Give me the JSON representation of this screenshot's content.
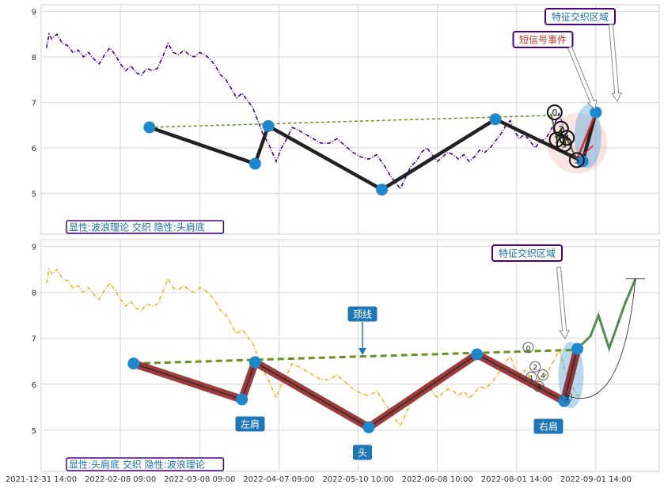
{
  "chart_data": [
    {
      "type": "line",
      "panel": "top",
      "ylim": [
        4.1,
        9.15
      ],
      "yticks": [
        5,
        6,
        7,
        8,
        9
      ],
      "grid": true,
      "price_color": "#4b0082",
      "price_series": [
        [
          1.0,
          8.2
        ],
        [
          1.5,
          8.5
        ],
        [
          2.0,
          8.4
        ],
        [
          3.0,
          8.5
        ],
        [
          4.0,
          8.3
        ],
        [
          5.0,
          8.25
        ],
        [
          6.0,
          8.1
        ],
        [
          7.0,
          8.15
        ],
        [
          8.0,
          8.0
        ],
        [
          9.0,
          8.1
        ],
        [
          10.0,
          7.95
        ],
        [
          11.0,
          7.85
        ],
        [
          12.0,
          8.05
        ],
        [
          13.0,
          8.2
        ],
        [
          14.0,
          8.05
        ],
        [
          15.0,
          7.85
        ],
        [
          16.0,
          7.7
        ],
        [
          17.0,
          7.8
        ],
        [
          18.0,
          7.65
        ],
        [
          19.0,
          7.6
        ],
        [
          20.0,
          7.75
        ],
        [
          21.0,
          7.7
        ],
        [
          22.0,
          7.75
        ],
        [
          23.0,
          8.0
        ],
        [
          24.0,
          8.3
        ],
        [
          25.0,
          8.1
        ],
        [
          26.0,
          8.05
        ],
        [
          27.0,
          8.15
        ],
        [
          28.0,
          8.05
        ],
        [
          29.0,
          8.0
        ],
        [
          30.0,
          8.1
        ],
        [
          31.0,
          8.05
        ],
        [
          32.0,
          7.95
        ],
        [
          33.0,
          7.8
        ],
        [
          34.0,
          7.6
        ],
        [
          35.0,
          7.5
        ],
        [
          36.0,
          7.3
        ],
        [
          37.0,
          7.1
        ],
        [
          38.0,
          7.2
        ],
        [
          39.0,
          7.05
        ],
        [
          40.0,
          6.9
        ],
        [
          41.0,
          6.6
        ],
        [
          42.0,
          6.3
        ],
        [
          43.0,
          6.1
        ],
        [
          44.5,
          5.7
        ],
        [
          45.5,
          6.0
        ],
        [
          46.5,
          6.2
        ],
        [
          47.5,
          6.45
        ],
        [
          48.5,
          6.4
        ],
        [
          50.0,
          6.3
        ],
        [
          51.5,
          6.2
        ],
        [
          53.0,
          6.1
        ],
        [
          54.5,
          6.1
        ],
        [
          56.0,
          6.2
        ],
        [
          57.5,
          6.05
        ],
        [
          59.0,
          5.9
        ],
        [
          60.5,
          5.8
        ],
        [
          62.0,
          5.75
        ],
        [
          63.5,
          5.85
        ],
        [
          65.0,
          5.6
        ],
        [
          66.0,
          5.4
        ],
        [
          67.0,
          5.25
        ],
        [
          68.0,
          5.1
        ],
        [
          69.0,
          5.35
        ],
        [
          70.0,
          5.6
        ],
        [
          71.0,
          5.7
        ],
        [
          72.0,
          5.9
        ],
        [
          73.0,
          6.0
        ],
        [
          74.0,
          5.85
        ],
        [
          75.0,
          5.7
        ],
        [
          76.0,
          5.8
        ],
        [
          77.0,
          5.9
        ],
        [
          78.0,
          5.85
        ],
        [
          79.0,
          5.75
        ],
        [
          80.0,
          5.85
        ],
        [
          81.0,
          5.7
        ],
        [
          82.0,
          5.8
        ],
        [
          83.0,
          5.95
        ],
        [
          84.0,
          5.9
        ],
        [
          85.0,
          6.0
        ],
        [
          86.0,
          6.15
        ],
        [
          87.0,
          6.3
        ],
        [
          88.0,
          6.5
        ],
        [
          88.8,
          6.6
        ],
        [
          89.5,
          6.4
        ],
        [
          90.5,
          6.2
        ],
        [
          91.5,
          6.3
        ],
        [
          92.5,
          6.15
        ],
        [
          93.5,
          6.0
        ],
        [
          94.5,
          6.15
        ],
        [
          95.5,
          6.2
        ],
        [
          96.5,
          6.4
        ],
        [
          97.5,
          6.6
        ],
        [
          98.0,
          6.75
        ],
        [
          98.5,
          6.6
        ],
        [
          99.0,
          6.35
        ],
        [
          99.5,
          6.2
        ],
        [
          100.0,
          6.05
        ],
        [
          100.5,
          5.95
        ],
        [
          101.0,
          5.85
        ],
        [
          101.6,
          5.75
        ],
        [
          102.0,
          5.8
        ]
      ],
      "pattern": {
        "x": [
          20.5,
          40.5,
          43.0,
          64.5,
          86.0,
          102.5,
          105.0
        ],
        "y": [
          6.45,
          5.65,
          6.48,
          5.08,
          6.63,
          5.7,
          6.78
        ]
      },
      "neckline": {
        "x": [
          20.5,
          98.5
        ],
        "y": [
          6.45,
          6.72
        ]
      },
      "signal_numbers": [
        {
          "label": "0",
          "x": 97.2,
          "y": 6.78
        },
        {
          "label": "2",
          "x": 98.4,
          "y": 6.42
        },
        {
          "label": "1",
          "x": 97.6,
          "y": 6.18
        },
        {
          "label": "3",
          "x": 99.0,
          "y": 6.08
        },
        {
          "label": "4",
          "x": 99.5,
          "y": 6.22
        },
        {
          "label": "5",
          "x": 101.4,
          "y": 5.73
        }
      ],
      "legend_text": "显性:波浪理论 交织 隐性:头肩底",
      "labels": {
        "feature_zone": "特征交织区域",
        "short_signal": "短信号事件"
      }
    },
    {
      "type": "line",
      "panel": "bottom",
      "ylim": [
        4.1,
        9.15
      ],
      "yticks": [
        5,
        6,
        7,
        8,
        9
      ],
      "grid": true,
      "price_color": "#e8b52c",
      "price_series": [
        [
          1.0,
          8.2
        ],
        [
          1.5,
          8.5
        ],
        [
          2.0,
          8.4
        ],
        [
          3.0,
          8.5
        ],
        [
          4.0,
          8.3
        ],
        [
          5.0,
          8.25
        ],
        [
          6.0,
          8.1
        ],
        [
          7.0,
          8.15
        ],
        [
          8.0,
          8.0
        ],
        [
          9.0,
          8.1
        ],
        [
          10.0,
          7.95
        ],
        [
          11.0,
          7.85
        ],
        [
          12.0,
          8.05
        ],
        [
          13.0,
          8.2
        ],
        [
          14.0,
          8.05
        ],
        [
          15.0,
          7.85
        ],
        [
          16.0,
          7.7
        ],
        [
          17.0,
          7.8
        ],
        [
          18.0,
          7.65
        ],
        [
          19.0,
          7.6
        ],
        [
          20.0,
          7.75
        ],
        [
          21.0,
          7.7
        ],
        [
          22.0,
          7.75
        ],
        [
          23.0,
          8.0
        ],
        [
          24.0,
          8.3
        ],
        [
          25.0,
          8.1
        ],
        [
          26.0,
          8.05
        ],
        [
          27.0,
          8.15
        ],
        [
          28.0,
          8.05
        ],
        [
          29.0,
          8.0
        ],
        [
          30.0,
          8.1
        ],
        [
          31.0,
          8.05
        ],
        [
          32.0,
          7.95
        ],
        [
          33.0,
          7.8
        ],
        [
          34.0,
          7.6
        ],
        [
          35.0,
          7.5
        ],
        [
          36.0,
          7.3
        ],
        [
          37.0,
          7.1
        ],
        [
          38.0,
          7.2
        ],
        [
          39.0,
          7.05
        ],
        [
          40.0,
          6.9
        ],
        [
          41.0,
          6.6
        ],
        [
          42.0,
          6.3
        ],
        [
          43.0,
          6.1
        ],
        [
          44.5,
          5.7
        ],
        [
          45.5,
          6.0
        ],
        [
          46.5,
          6.2
        ],
        [
          47.5,
          6.45
        ],
        [
          48.5,
          6.4
        ],
        [
          50.0,
          6.3
        ],
        [
          51.5,
          6.2
        ],
        [
          53.0,
          6.1
        ],
        [
          54.5,
          6.1
        ],
        [
          56.0,
          6.2
        ],
        [
          57.5,
          6.05
        ],
        [
          59.0,
          5.9
        ],
        [
          60.5,
          5.8
        ],
        [
          62.0,
          5.75
        ],
        [
          63.5,
          5.85
        ],
        [
          65.0,
          5.6
        ],
        [
          66.0,
          5.4
        ],
        [
          67.0,
          5.25
        ],
        [
          68.0,
          5.1
        ],
        [
          69.0,
          5.35
        ],
        [
          70.0,
          5.6
        ],
        [
          71.0,
          5.7
        ],
        [
          72.0,
          5.9
        ],
        [
          73.0,
          6.0
        ],
        [
          74.0,
          5.85
        ],
        [
          75.0,
          5.7
        ],
        [
          76.0,
          5.8
        ],
        [
          77.0,
          5.9
        ],
        [
          78.0,
          5.85
        ],
        [
          79.0,
          5.75
        ],
        [
          80.0,
          5.85
        ],
        [
          81.0,
          5.7
        ],
        [
          82.0,
          5.8
        ],
        [
          83.0,
          5.95
        ],
        [
          84.0,
          5.9
        ],
        [
          85.0,
          6.0
        ],
        [
          86.0,
          6.15
        ],
        [
          87.0,
          6.3
        ],
        [
          88.0,
          6.5
        ],
        [
          88.8,
          6.6
        ],
        [
          89.5,
          6.4
        ],
        [
          90.5,
          6.2
        ],
        [
          91.5,
          6.3
        ],
        [
          92.5,
          6.15
        ],
        [
          93.5,
          6.0
        ],
        [
          94.5,
          6.15
        ],
        [
          95.5,
          6.2
        ],
        [
          96.5,
          6.4
        ],
        [
          97.5,
          6.6
        ],
        [
          98.0,
          6.75
        ],
        [
          98.5,
          6.6
        ],
        [
          99.0,
          6.35
        ],
        [
          99.5,
          6.2
        ],
        [
          100.0,
          6.05
        ],
        [
          100.5,
          5.95
        ],
        [
          101.0,
          5.85
        ],
        [
          101.6,
          5.75
        ],
        [
          102.0,
          5.8
        ]
      ],
      "pattern": {
        "x": [
          17.5,
          38.0,
          40.5,
          62.0,
          82.5,
          99.0,
          101.5
        ],
        "y": [
          6.45,
          5.67,
          6.48,
          5.06,
          6.65,
          5.63,
          6.77
        ]
      },
      "neckline": {
        "x": [
          17.5,
          101.5
        ],
        "y": [
          6.45,
          6.75
        ]
      },
      "projection": {
        "x": [
          101.5,
          104.0,
          105.5,
          107.5,
          108.5,
          110.5,
          112.5
        ],
        "y": [
          6.77,
          7.05,
          7.5,
          6.78,
          7.1,
          7.75,
          8.3
        ]
      },
      "signal_numbers": [
        {
          "label": "0",
          "x": 92.2,
          "y": 6.8
        },
        {
          "label": "2",
          "x": 93.5,
          "y": 6.38
        },
        {
          "label": "1",
          "x": 92.8,
          "y": 6.15
        },
        {
          "label": "4",
          "x": 95.0,
          "y": 6.2
        },
        {
          "label": "3",
          "x": 94.2,
          "y": 5.95
        },
        {
          "label": "5",
          "x": 99.5,
          "y": 5.72
        }
      ],
      "legend_text": "显性:头肩底 交织 隐性:波浪理论",
      "labels": {
        "feature_zone": "特征交织区域",
        "neckline": "颈线",
        "left_shoulder": "左肩",
        "head": "头",
        "right_shoulder": "右肩"
      }
    }
  ],
  "x_axis": {
    "range": [
      0,
      117
    ],
    "ticks": [
      {
        "x": 0,
        "label": "2021-12-31 14:00"
      },
      {
        "x": 15,
        "label": "2022-02-08 09:00"
      },
      {
        "x": 30,
        "label": "2022-03-08 09:00"
      },
      {
        "x": 45,
        "label": "2022-04-07 09:00"
      },
      {
        "x": 60,
        "label": "2022-05-10 10:00"
      },
      {
        "x": 75,
        "label": "2022-06-08 10:00"
      },
      {
        "x": 90,
        "label": "2022-08-01 14:00"
      },
      {
        "x": 105,
        "label": "2022-09-01 14:00"
      }
    ]
  },
  "colors": {
    "pattern_line": "#222222",
    "pattern_bottom": "#8b1a1a",
    "node": "#1f88cc",
    "neckline": "#6b8e23",
    "label_box": "#1f77b4",
    "legend_text": "#1a6fa8",
    "legend_border": "#4b0082"
  }
}
